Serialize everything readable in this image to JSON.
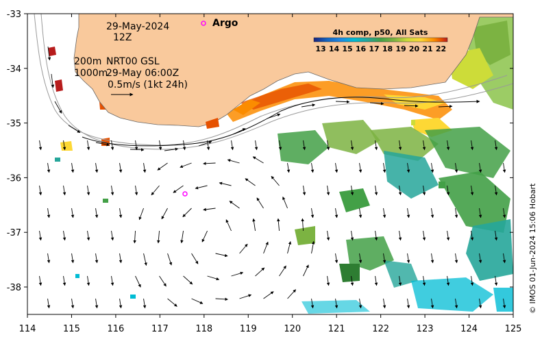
{
  "map": {
    "date": "29-May-2024",
    "time": "12Z",
    "depth_200": "200m",
    "depth_1000": "1000m",
    "product": "NRT00 GSL",
    "product_time": "29-May 06:00Z",
    "scale_text": "0.5m/s (1kt 24h)",
    "argo_label": "Argo",
    "colorbar_title": "4h comp, p50, All Sats",
    "credit": "© IMOS 01-Jun-2024 15:06 Hobart",
    "x_ticks": [
      "114",
      "115",
      "116",
      "117",
      "118",
      "119",
      "120",
      "121",
      "122",
      "123",
      "124",
      "125"
    ],
    "y_ticks": [
      "-33",
      "-34",
      "-35",
      "-36",
      "-37",
      "-38"
    ],
    "colorbar_ticks": [
      "13",
      "14",
      "15",
      "16",
      "17",
      "18",
      "19",
      "20",
      "21",
      "22"
    ],
    "colors": {
      "land": "#f9c99c",
      "argo": "#ff00ff",
      "colorbar": [
        "#1a237e",
        "#1565c0",
        "#1e88e5",
        "#00bcd4",
        "#26a69a",
        "#43a047",
        "#7cb342",
        "#cddc39",
        "#fdd835",
        "#fb8c00",
        "#e65100",
        "#b71c1c"
      ]
    }
  }
}
